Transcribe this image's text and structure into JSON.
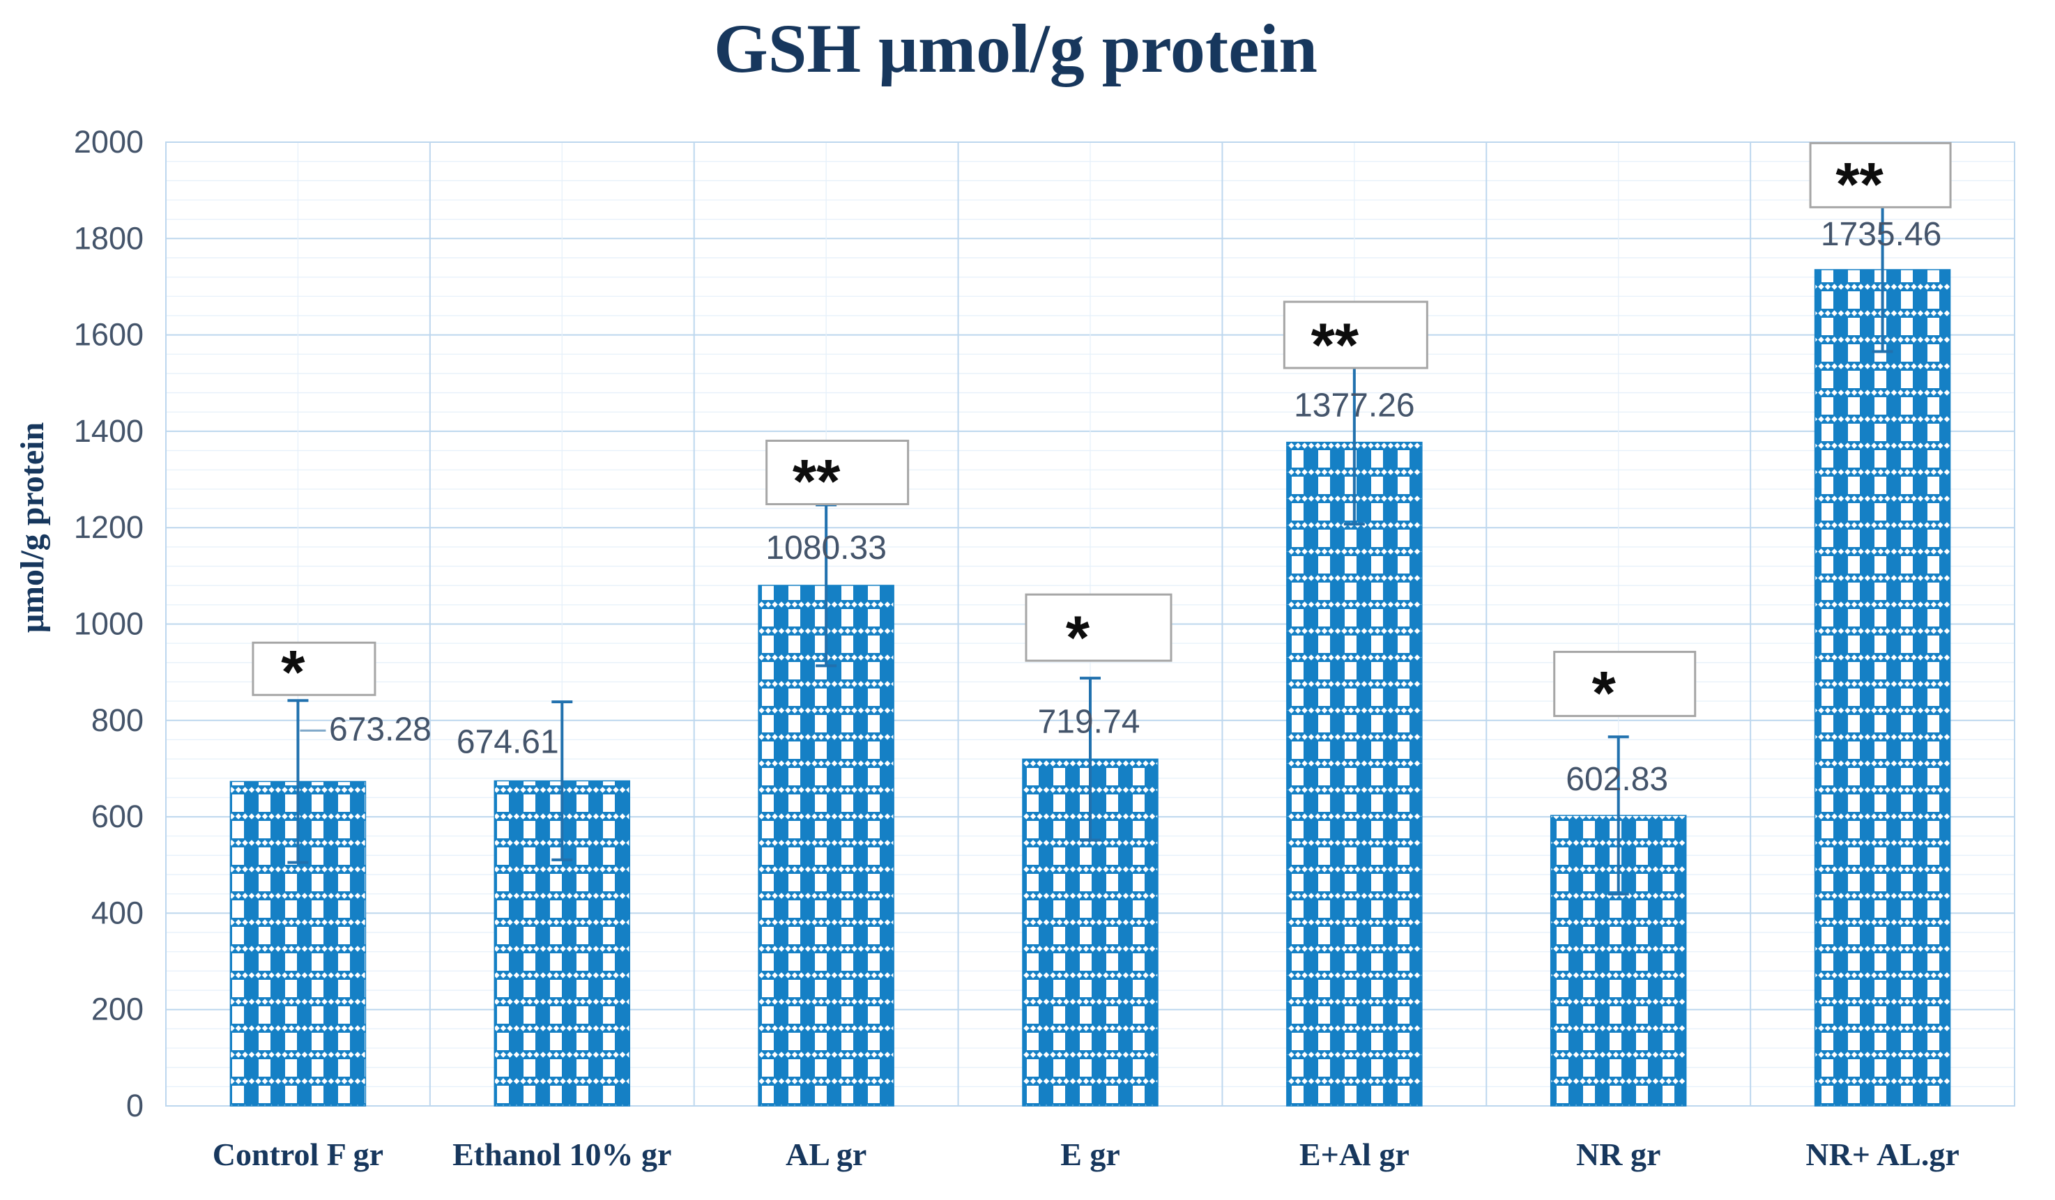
{
  "title": "GSH μmol/g protein",
  "chart_data": {
    "type": "bar",
    "title": "GSH μmol/g protein",
    "xlabel": "",
    "ylabel": "μmol/g protein",
    "ylim": [
      0,
      2000
    ],
    "ytick_step": 200,
    "yminor_step": 40,
    "grid": true,
    "legend": false,
    "categories": [
      "Control F gr",
      "Ethanol 10% gr",
      "AL gr",
      "E gr",
      "E+Al gr",
      "NR gr",
      "NR+ AL.gr"
    ],
    "values": [
      673.28,
      674.61,
      1080.33,
      719.74,
      1377.26,
      602.83,
      1735.46
    ],
    "value_labels": [
      "673.28",
      "674.61",
      "1080.33",
      "719.74",
      "1377.26",
      "602.83",
      "1735.46"
    ],
    "error_bars": [
      168,
      164,
      167,
      168,
      170,
      163,
      170
    ],
    "significance_markers": [
      "*",
      null,
      "**",
      "*",
      "**",
      "*",
      "**"
    ],
    "colors": {
      "bar": "#1580C5",
      "error_bar": "#2171AE",
      "leader_line": "#7FA8C9",
      "grid_major": "#BDD7EE",
      "grid_minor": "#E6F0FA",
      "plot_border": "#BDD7EE",
      "title_text": "#17375D",
      "axis_text": "#44546A",
      "category_text": "#17375D",
      "annotation_box_fill": "#FFFFFF",
      "annotation_box_border": "#A6A6A6",
      "annotation_text": "#0D0D0D"
    }
  }
}
